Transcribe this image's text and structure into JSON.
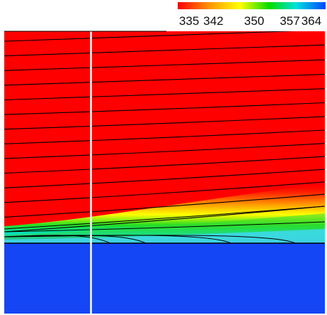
{
  "chart_data": {
    "type": "heatmap",
    "title": "",
    "xlabel": "",
    "ylabel": "",
    "colorbar": {
      "placement": "top-right",
      "ticks": [
        335,
        342,
        350,
        357,
        364
      ],
      "tick_labels": [
        "335",
        "342",
        "350",
        "357",
        "364"
      ],
      "range": [
        335,
        364
      ],
      "colormap": [
        "#ff0000",
        "#ff9900",
        "#ffff00",
        "#00dd00",
        "#00e0e0",
        "#0044ff"
      ]
    },
    "field": {
      "upper_region_value": 335,
      "lower_region_value": 364,
      "interface_colors": {
        "upper": "#ff0000",
        "lower": "#1446f5"
      },
      "contour_color": "#000000",
      "divider_color": "#ffffff",
      "border_color": "#000000"
    },
    "contour_levels": [
      {
        "value": 335,
        "kind": "streamline"
      },
      {
        "value": 335,
        "kind": "streamline"
      },
      {
        "value": 335,
        "kind": "streamline"
      },
      {
        "value": 335,
        "kind": "streamline"
      },
      {
        "value": 335,
        "kind": "streamline"
      },
      {
        "value": 335,
        "kind": "streamline"
      },
      {
        "value": 335,
        "kind": "streamline"
      },
      {
        "value": 335,
        "kind": "streamline"
      },
      {
        "value": 335,
        "kind": "streamline"
      },
      {
        "value": 335,
        "kind": "streamline"
      },
      {
        "value": 335,
        "kind": "streamline"
      },
      {
        "value": 335,
        "kind": "streamline"
      },
      {
        "value": 335,
        "kind": "streamline"
      },
      {
        "value": 335,
        "kind": "streamline"
      }
    ]
  }
}
